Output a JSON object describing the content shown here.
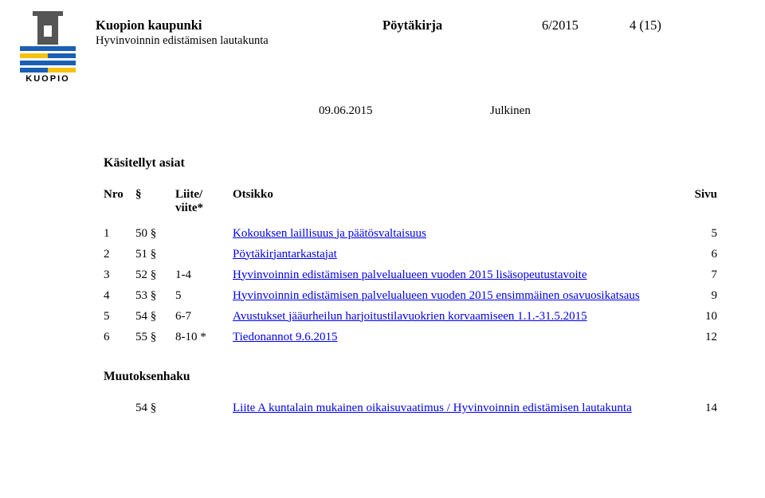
{
  "header": {
    "org": "Kuopion kaupunki",
    "board": "Hyvinvoinnin edistämisen lautakunta",
    "docType": "Pöytäkirja",
    "docNumber": "6/2015",
    "pageInfo": "4 (15)",
    "date": "09.06.2015",
    "status": "Julkinen",
    "logoText": "KUOPIO"
  },
  "sectionTitle": "Käsitellyt asiat",
  "columns": {
    "nro": "Nro",
    "sym": "§",
    "liite": "Liite/\nviite*",
    "ots": "Otsikko",
    "sivu": "Sivu"
  },
  "rows": [
    {
      "n": "1",
      "s": "50 §",
      "l": "",
      "t": "Kokouksen laillisuus ja päätösvaltaisuus",
      "p": "5",
      "link": true
    },
    {
      "n": "2",
      "s": "51 §",
      "l": "",
      "t": "Pöytäkirjantarkastajat",
      "p": "6",
      "link": true
    },
    {
      "n": "3",
      "s": "52 §",
      "l": "1-4",
      "t": "Hyvinvoinnin edistämisen palvelualueen vuoden 2015 lisäsopeutustavoite",
      "p": "7",
      "link": true
    },
    {
      "n": "4",
      "s": "53 §",
      "l": "5",
      "t": "Hyvinvoinnin edistämisen palvelualueen vuoden 2015 ensimmäinen osavuosikatsaus",
      "p": "9",
      "link": true
    },
    {
      "n": "5",
      "s": "54 §",
      "l": "6-7",
      "t": "Avustukset jääurheilun harjoitustilavuokrien korvaamiseen 1.1.-31.5.2015",
      "p": "10",
      "link": true
    },
    {
      "n": "6",
      "s": "55 §",
      "l": "8-10 *",
      "t": "Tiedonannot 9.6.2015",
      "p": "12",
      "link": true
    }
  ],
  "muutoksenhakuTitle": "Muutoksenhaku",
  "muuRows": [
    {
      "s": "54 §",
      "t": "Liite A kuntalain mukainen oikaisuvaatimus / Hyvinvoinnin edistämisen lautakunta",
      "p": "14",
      "link": true
    }
  ]
}
